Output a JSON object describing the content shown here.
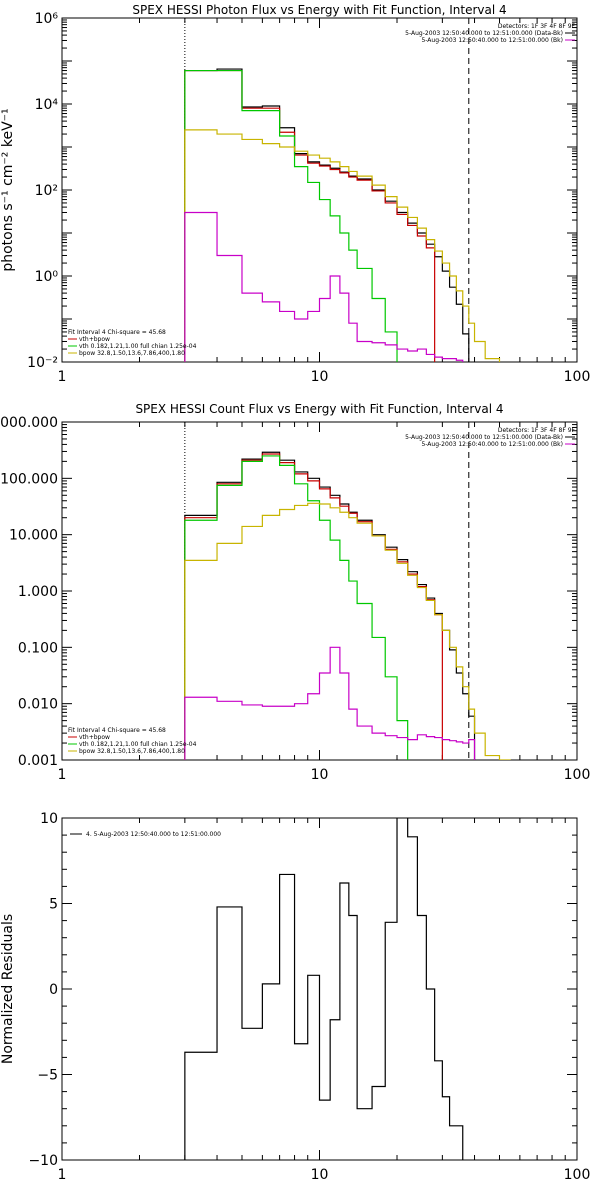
{
  "colors": {
    "data": "#000000",
    "total": "#c80000",
    "vth": "#00c800",
    "bpow": "#c8b400",
    "bk": "#c800c8"
  },
  "chart_data": [
    {
      "type": "line",
      "id": "photon",
      "title": "SPEX HESSI Photon Flux vs Energy with Fit Function, Interval 4",
      "xlabel": "",
      "ylabel": "photons s⁻¹ cm⁻² keV⁻¹",
      "xscale": "log",
      "yscale": "log",
      "xlim": [
        1,
        100
      ],
      "ylim": [
        0.01,
        1000000
      ],
      "xticks": [
        1,
        10,
        100
      ],
      "xtick_labels": [
        "1",
        "10",
        "100"
      ],
      "yticks": [
        0.01,
        1,
        100,
        10000,
        1000000
      ],
      "ytick_labels": [
        "10⁻²",
        "10⁰",
        "10²",
        "10⁴",
        "10⁶"
      ],
      "fit_start": 3,
      "fit_end": 38,
      "legend_top_right": {
        "detectors": "Detectors: 1F 3F 4F 8F 9F",
        "lines": [
          {
            "text": "5-Aug-2003 12:50:40.000 to 12:51:00.000 (Data-Bk)",
            "color_key": "data"
          },
          {
            "text": "5-Aug-2003 12:50:40.000 to 12:51:00.000 (Bk)",
            "color_key": "bk"
          }
        ]
      },
      "legend_bottom_left": {
        "header": "Fit Interval 4   Chi-square = 45.68",
        "lines": [
          {
            "text": "vth+bpow",
            "color_key": "total"
          },
          {
            "text": "vth 0.182,1.21,1.00  full chian 1.25e-04",
            "color_key": "vth"
          },
          {
            "text": "bpow 32.8,1.50,13.6,7.86,400,1.80",
            "color_key": "bpow"
          }
        ]
      },
      "bin_edges": [
        3.0,
        4.0,
        5.0,
        6.0,
        7.0,
        8.0,
        9.0,
        10.0,
        11.0,
        12.0,
        13.0,
        14.0,
        16.0,
        18.0,
        20.0,
        22.0,
        24.0,
        26.0,
        28.0,
        30.0,
        32.0,
        34.0,
        36.0,
        38.0,
        40.0,
        44.0,
        50.0
      ],
      "series": [
        {
          "name": "Data-Bk",
          "color_key": "data",
          "values": [
            60000,
            65000,
            8500,
            9000,
            2800,
            700,
            450,
            380,
            320,
            260,
            210,
            180,
            100,
            55,
            30,
            17,
            10,
            5.5,
            2.8,
            1.3,
            0.55,
            0.22,
            0.045,
            null,
            null,
            null
          ]
        },
        {
          "name": "vth+bpow",
          "color_key": "total",
          "values": [
            60000,
            60000,
            8000,
            8000,
            2200,
            650,
            420,
            360,
            300,
            250,
            200,
            170,
            95,
            50,
            27,
            15,
            8.5,
            4.5,
            null,
            null,
            null,
            null,
            null,
            null,
            null,
            null
          ]
        },
        {
          "name": "vth",
          "color_key": "vth",
          "values": [
            60000,
            60000,
            7000,
            7000,
            1800,
            350,
            150,
            60,
            25,
            10,
            4,
            1.5,
            0.3,
            0.05,
            0.008,
            null,
            null,
            null,
            null,
            null,
            null,
            null,
            null,
            null,
            null,
            null
          ]
        },
        {
          "name": "bpow",
          "color_key": "bpow",
          "values": [
            2500,
            2000,
            1500,
            1200,
            1000,
            800,
            650,
            550,
            450,
            350,
            270,
            210,
            130,
            70,
            40,
            23,
            13,
            7,
            3.8,
            2.0,
            1.0,
            0.45,
            0.2,
            0.08,
            0.03,
            0.012
          ]
        },
        {
          "name": "Bk",
          "color_key": "bk",
          "values": [
            30,
            3,
            0.4,
            0.25,
            0.15,
            0.1,
            0.15,
            0.3,
            1.0,
            0.4,
            0.08,
            0.03,
            0.028,
            0.025,
            0.02,
            0.018,
            0.02,
            0.015,
            0.013,
            0.012,
            0.012,
            0.011,
            null,
            null,
            null,
            null
          ]
        }
      ]
    },
    {
      "type": "line",
      "id": "count",
      "title": "SPEX HESSI Count Flux vs Energy with Fit Function, Interval 4",
      "xlabel": "",
      "ylabel": "",
      "xscale": "log",
      "yscale": "log",
      "xlim": [
        1,
        100
      ],
      "ylim": [
        0.001,
        1000
      ],
      "xticks": [
        1,
        10,
        100
      ],
      "xtick_labels": [
        "1",
        "10",
        "100"
      ],
      "yticks": [
        0.001,
        0.01,
        0.1,
        1,
        10,
        100,
        1000
      ],
      "ytick_labels": [
        "0.001",
        "0.010",
        "0.100",
        "1.000",
        "10.000",
        "100.000",
        "1000.000"
      ],
      "fit_start": 3,
      "fit_end": 38,
      "legend_top_right": {
        "detectors": "Detectors: 1F 3F 4F 8F 9F",
        "lines": [
          {
            "text": "5-Aug-2003 12:50:40.000 to 12:51:00.000 (Data-Bk)",
            "color_key": "data"
          },
          {
            "text": "5-Aug-2003 12:50:40.000 to 12:51:00.000 (Bk)",
            "color_key": "bk"
          }
        ]
      },
      "legend_bottom_left": {
        "header": "Fit Interval 4   Chi-square = 45.68",
        "lines": [
          {
            "text": "vth+bpow",
            "color_key": "total"
          },
          {
            "text": "vth 0.182,1.21,1.00  full chian 1.25e-04",
            "color_key": "vth"
          },
          {
            "text": "bpow 32.8,1.50,13.6,7.86,400,1.80",
            "color_key": "bpow"
          }
        ]
      },
      "bin_edges": [
        3.0,
        4.0,
        5.0,
        6.0,
        7.0,
        8.0,
        9.0,
        10.0,
        11.0,
        12.0,
        13.0,
        14.0,
        16.0,
        18.0,
        20.0,
        22.0,
        24.0,
        26.0,
        28.0,
        30.0,
        32.0,
        34.0,
        36.0,
        38.0,
        40.0,
        44.0,
        50.0,
        55.0
      ],
      "series": [
        {
          "name": "Data-Bk",
          "color_key": "data",
          "values": [
            22,
            85,
            220,
            290,
            210,
            130,
            100,
            70,
            50,
            35,
            25,
            18,
            10,
            6.0,
            3.6,
            2.2,
            1.3,
            0.75,
            0.4,
            0.2,
            0.09,
            0.035,
            0.015,
            0.006,
            null,
            null,
            null
          ]
        },
        {
          "name": "vth+bpow",
          "color_key": "total",
          "values": [
            20,
            80,
            210,
            270,
            190,
            120,
            90,
            65,
            45,
            32,
            24,
            17,
            9.5,
            5.5,
            3.3,
            2.0,
            1.2,
            0.7,
            0.38,
            null,
            null,
            null,
            null,
            null,
            null,
            null,
            null
          ]
        },
        {
          "name": "vth",
          "color_key": "vth",
          "values": [
            18,
            75,
            200,
            250,
            170,
            80,
            40,
            18,
            8,
            3.5,
            1.5,
            0.6,
            0.15,
            0.03,
            0.005,
            null,
            null,
            null,
            null,
            null,
            null,
            null,
            null,
            null,
            null,
            null,
            null
          ]
        },
        {
          "name": "bpow",
          "color_key": "bpow",
          "values": [
            3.5,
            7,
            14,
            22,
            28,
            33,
            36,
            35,
            30,
            25,
            20,
            16,
            9.5,
            5.3,
            3.1,
            1.9,
            1.15,
            0.68,
            0.38,
            0.2,
            0.1,
            0.045,
            0.02,
            0.008,
            0.003,
            0.0012,
            0.001
          ]
        },
        {
          "name": "Bk",
          "color_key": "bk",
          "values": [
            0.013,
            0.011,
            0.0095,
            0.009,
            0.009,
            0.01,
            0.015,
            0.035,
            0.1,
            0.035,
            0.008,
            0.004,
            0.003,
            0.0027,
            0.0025,
            0.0023,
            0.0028,
            0.0026,
            0.0025,
            0.0023,
            0.0022,
            0.0021,
            0.002,
            0.0023,
            null,
            null,
            null
          ]
        }
      ]
    },
    {
      "type": "line",
      "id": "residuals",
      "title": "",
      "xlabel": "",
      "ylabel": "Normalized Residuals",
      "xscale": "log",
      "yscale": "linear",
      "xlim": [
        1,
        100
      ],
      "ylim": [
        -10,
        10
      ],
      "xticks": [
        1,
        10,
        100
      ],
      "xtick_labels": [
        "1",
        "10",
        "100"
      ],
      "yticks": [
        -10,
        -5,
        0,
        5,
        10
      ],
      "ytick_labels": [
        "−10",
        "−5",
        "0",
        "5",
        "10"
      ],
      "legend_top_left": {
        "lines": [
          {
            "text": "4. 5-Aug-2003 12:50:40.000 to 12:51:00.000",
            "color_key": "data"
          }
        ]
      },
      "bin_edges": [
        3.0,
        4.0,
        5.0,
        6.0,
        7.0,
        8.0,
        9.0,
        10.0,
        11.0,
        12.0,
        13.0,
        14.0,
        16.0,
        18.0,
        20.0,
        22.0,
        24.0,
        26.0,
        28.0,
        30.0,
        32.0,
        34.0,
        36.0,
        38.0
      ],
      "series": [
        {
          "name": "Residuals",
          "color_key": "data",
          "values": [
            -3.7,
            4.8,
            -2.3,
            0.3,
            6.7,
            -3.2,
            0.8,
            -6.5,
            -1.8,
            6.2,
            4.3,
            -7.0,
            -5.7,
            3.9,
            10.1,
            8.9,
            4.3,
            0.0,
            -4.2,
            -6.3,
            -8.0,
            -8.0,
            null
          ]
        }
      ]
    }
  ]
}
